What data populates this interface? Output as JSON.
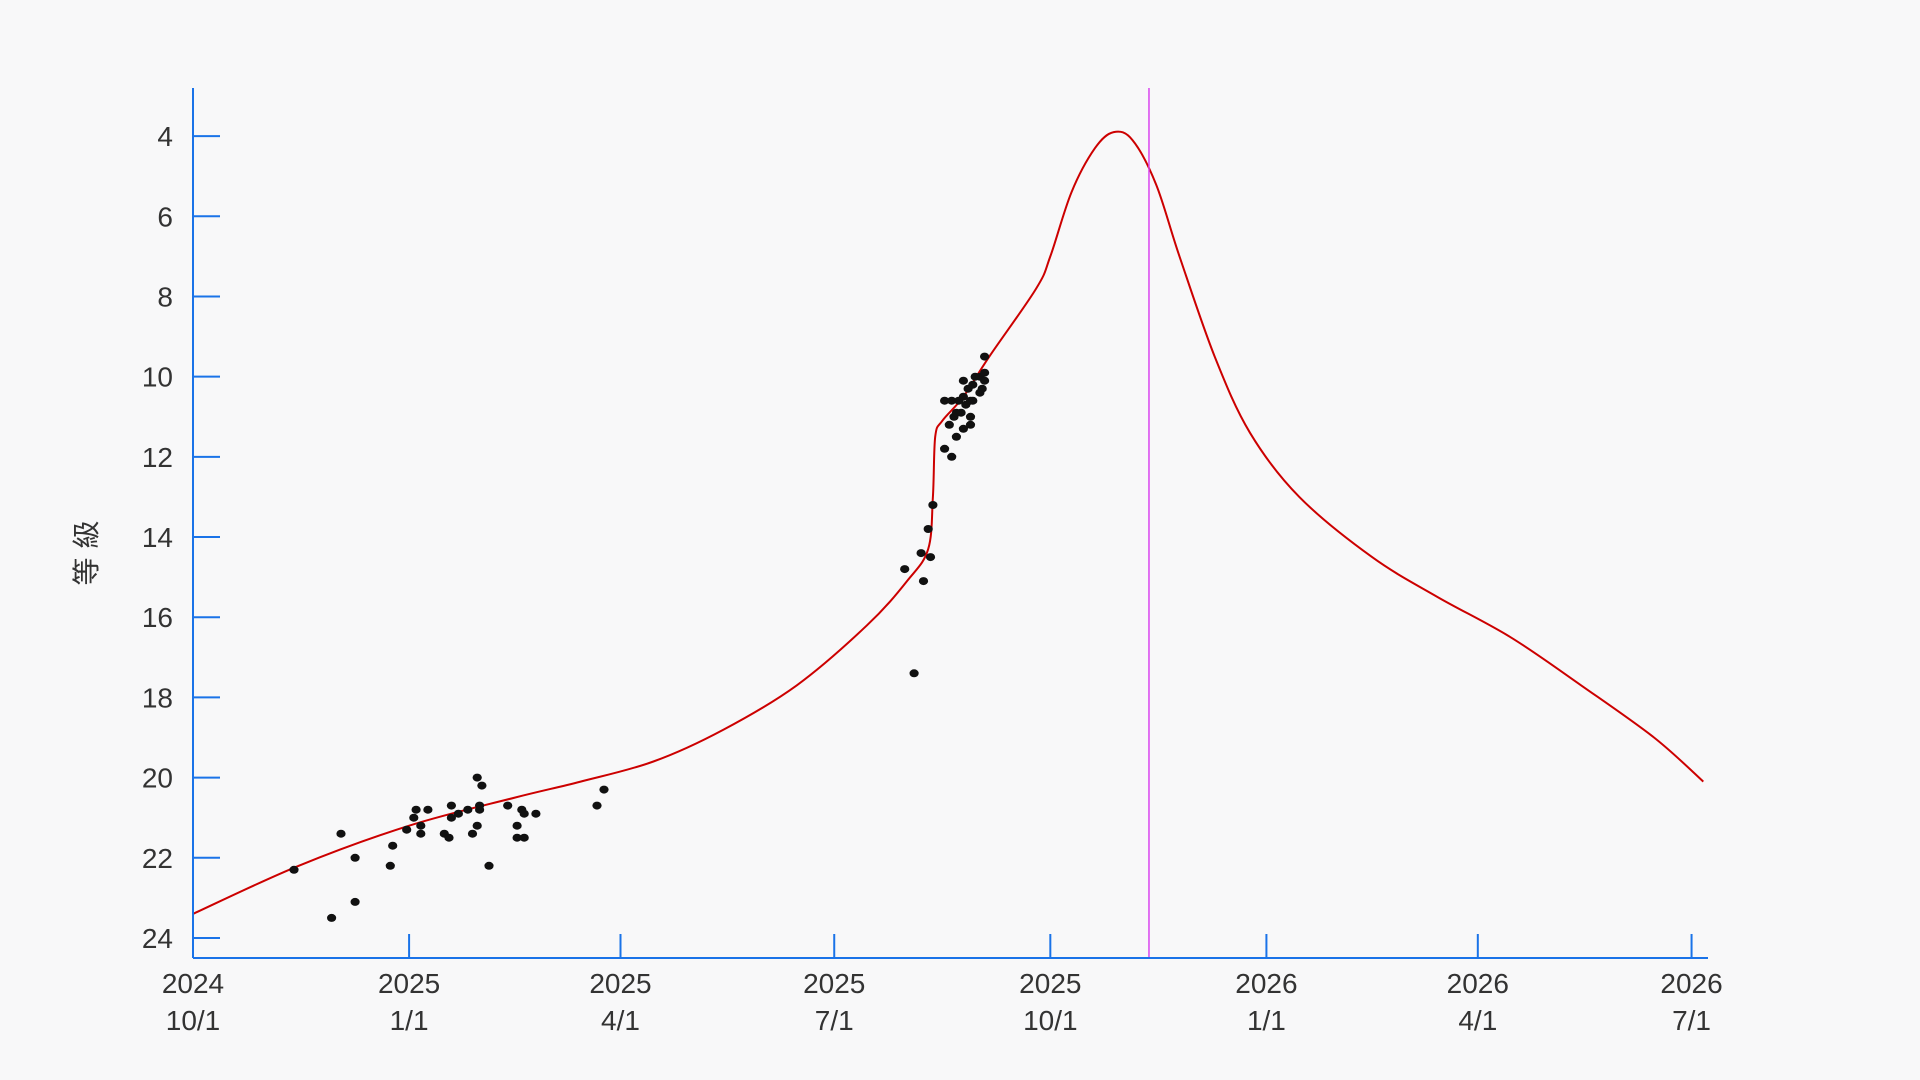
{
  "chart_data": {
    "type": "scatter",
    "title": "",
    "xlabel": "",
    "ylabel": "等 級",
    "y_axis_inverted": true,
    "ylim": [
      24.5,
      2.8
    ],
    "xlim": [
      "2024-10-01",
      "2026-07-08"
    ],
    "grid": false,
    "colors": {
      "axis": "#1a73e8",
      "curve": "#cc0000",
      "points": "#111111",
      "marker_line": "#d946ef",
      "text": "#333333"
    },
    "x_ticks": [
      {
        "date": "2024-10-01",
        "year": "2024",
        "md": "10/1"
      },
      {
        "date": "2025-01-01",
        "year": "2025",
        "md": "1/1"
      },
      {
        "date": "2025-04-01",
        "year": "2025",
        "md": "4/1"
      },
      {
        "date": "2025-07-01",
        "year": "2025",
        "md": "7/1"
      },
      {
        "date": "2025-10-01",
        "year": "2025",
        "md": "10/1"
      },
      {
        "date": "2026-01-01",
        "year": "2026",
        "md": "1/1"
      },
      {
        "date": "2026-04-01",
        "year": "2026",
        "md": "4/1"
      },
      {
        "date": "2026-07-01",
        "year": "2026",
        "md": "7/1"
      }
    ],
    "y_ticks": [
      4,
      6,
      8,
      10,
      12,
      14,
      16,
      18,
      20,
      22,
      24
    ],
    "vertical_marker": {
      "date": "2025-11-12"
    },
    "curve": [
      [
        "2024-10-01",
        23.4
      ],
      [
        "2024-11-15",
        22.2
      ],
      [
        "2025-01-01",
        21.2
      ],
      [
        "2025-02-15",
        20.5
      ],
      [
        "2025-03-15",
        20.1
      ],
      [
        "2025-04-15",
        19.6
      ],
      [
        "2025-05-15",
        18.8
      ],
      [
        "2025-06-15",
        17.7
      ],
      [
        "2025-07-15",
        16.2
      ],
      [
        "2025-08-01",
        15.1
      ],
      [
        "2025-08-10",
        14.3
      ],
      [
        "2025-08-12",
        13.0
      ],
      [
        "2025-08-13",
        11.5
      ],
      [
        "2025-08-16",
        11.1
      ],
      [
        "2025-08-25",
        10.5
      ],
      [
        "2025-09-05",
        9.5
      ],
      [
        "2025-09-25",
        7.8
      ],
      [
        "2025-10-01",
        7.0
      ],
      [
        "2025-10-10",
        5.4
      ],
      [
        "2025-10-20",
        4.3
      ],
      [
        "2025-10-28",
        3.9
      ],
      [
        "2025-11-05",
        4.1
      ],
      [
        "2025-11-15",
        5.2
      ],
      [
        "2025-11-25",
        7.0
      ],
      [
        "2025-12-10",
        9.5
      ],
      [
        "2025-12-25",
        11.4
      ],
      [
        "2026-01-15",
        13.0
      ],
      [
        "2026-02-15",
        14.5
      ],
      [
        "2026-03-15",
        15.5
      ],
      [
        "2026-04-15",
        16.5
      ],
      [
        "2026-05-15",
        17.7
      ],
      [
        "2026-06-15",
        19.0
      ],
      [
        "2026-07-06",
        20.1
      ]
    ],
    "points": [
      [
        "2024-11-13",
        22.3
      ],
      [
        "2024-11-29",
        23.5
      ],
      [
        "2024-12-03",
        21.4
      ],
      [
        "2024-12-09",
        23.1
      ],
      [
        "2024-12-09",
        22.0
      ],
      [
        "2024-12-24",
        22.2
      ],
      [
        "2024-12-25",
        21.7
      ],
      [
        "2024-12-31",
        21.3
      ],
      [
        "2025-01-03",
        21.0
      ],
      [
        "2025-01-04",
        20.8
      ],
      [
        "2025-01-06",
        21.4
      ],
      [
        "2025-01-06",
        21.2
      ],
      [
        "2025-01-09",
        20.8
      ],
      [
        "2025-01-16",
        21.4
      ],
      [
        "2025-01-18",
        21.5
      ],
      [
        "2025-01-19",
        20.7
      ],
      [
        "2025-01-19",
        21.0
      ],
      [
        "2025-01-22",
        20.9
      ],
      [
        "2025-01-26",
        20.8
      ],
      [
        "2025-01-28",
        21.4
      ],
      [
        "2025-01-30",
        21.2
      ],
      [
        "2025-01-30",
        20.0
      ],
      [
        "2025-01-31",
        20.8
      ],
      [
        "2025-01-31",
        20.7
      ],
      [
        "2025-02-01",
        20.2
      ],
      [
        "2025-02-04",
        22.2
      ],
      [
        "2025-02-12",
        20.7
      ],
      [
        "2025-02-16",
        21.5
      ],
      [
        "2025-02-16",
        21.2
      ],
      [
        "2025-02-18",
        20.8
      ],
      [
        "2025-02-19",
        21.5
      ],
      [
        "2025-02-19",
        20.9
      ],
      [
        "2025-02-24",
        20.9
      ],
      [
        "2025-03-22",
        20.7
      ],
      [
        "2025-03-25",
        20.3
      ],
      [
        "2025-07-31",
        14.8
      ],
      [
        "2025-08-04",
        17.4
      ],
      [
        "2025-08-07",
        14.4
      ],
      [
        "2025-08-08",
        15.1
      ],
      [
        "2025-08-10",
        13.8
      ],
      [
        "2025-08-11",
        14.5
      ],
      [
        "2025-08-12",
        13.2
      ],
      [
        "2025-08-17",
        11.8
      ],
      [
        "2025-08-17",
        10.6
      ],
      [
        "2025-08-19",
        11.2
      ],
      [
        "2025-08-20",
        10.6
      ],
      [
        "2025-08-20",
        12.0
      ],
      [
        "2025-08-21",
        11.0
      ],
      [
        "2025-08-22",
        11.5
      ],
      [
        "2025-08-22",
        10.9
      ],
      [
        "2025-08-23",
        10.6
      ],
      [
        "2025-08-24",
        10.9
      ],
      [
        "2025-08-25",
        11.3
      ],
      [
        "2025-08-25",
        10.5
      ],
      [
        "2025-08-25",
        10.1
      ],
      [
        "2025-08-26",
        10.7
      ],
      [
        "2025-08-27",
        10.3
      ],
      [
        "2025-08-28",
        10.6
      ],
      [
        "2025-08-28",
        11.0
      ],
      [
        "2025-08-28",
        11.2
      ],
      [
        "2025-08-29",
        10.2
      ],
      [
        "2025-08-29",
        10.6
      ],
      [
        "2025-08-30",
        10.0
      ],
      [
        "2025-09-01",
        10.4
      ],
      [
        "2025-09-01",
        10.0
      ],
      [
        "2025-09-02",
        10.3
      ],
      [
        "2025-09-03",
        9.9
      ],
      [
        "2025-09-03",
        10.1
      ],
      [
        "2025-09-03",
        9.5
      ]
    ]
  }
}
